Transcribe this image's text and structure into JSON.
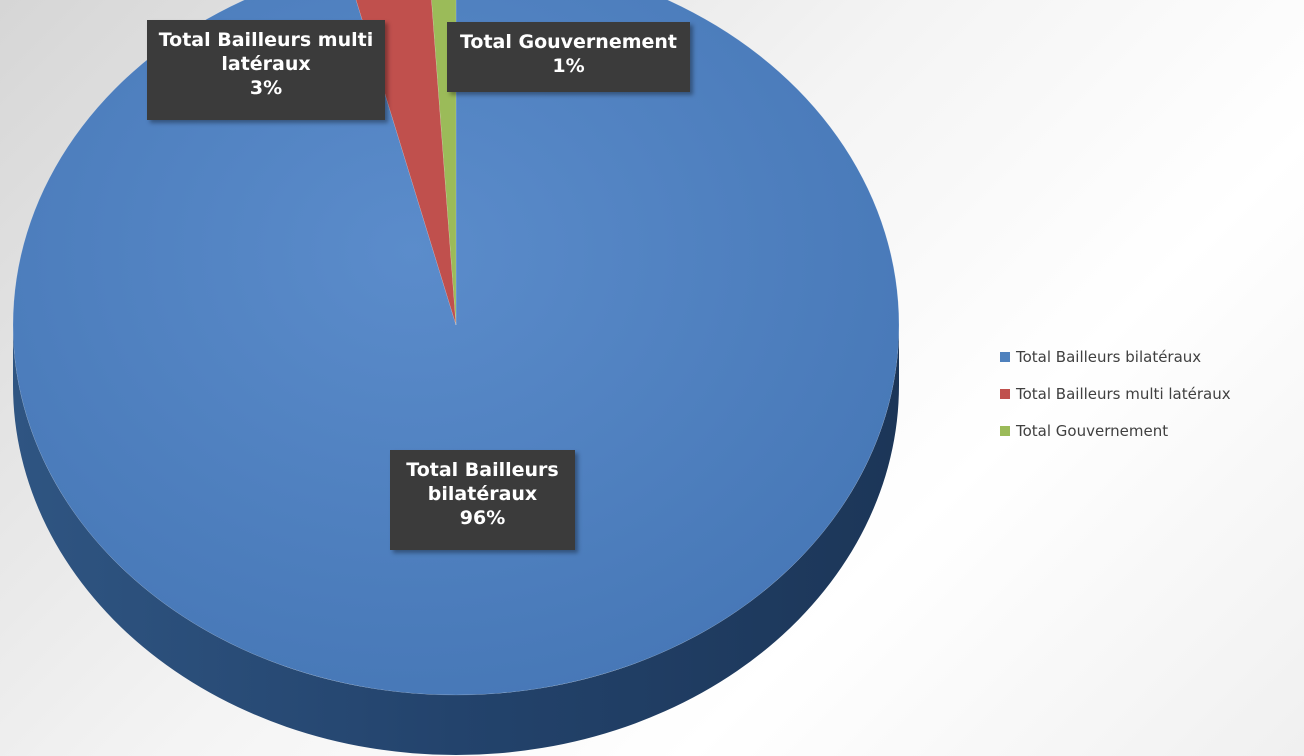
{
  "chart_data": {
    "type": "pie",
    "style": "3d",
    "categories": [
      "Total Bailleurs bilatéraux",
      "Total Bailleurs multi latéraux",
      "Total Gouvernement"
    ],
    "values": [
      96,
      3,
      1
    ],
    "unit": "%",
    "colors": [
      "#4f81bd",
      "#c0504d",
      "#9bbb59"
    ],
    "data_labels": [
      {
        "line1": "Total Bailleurs",
        "line2": "bilatéraux",
        "value": "96%"
      },
      {
        "line1": "Total Bailleurs multi",
        "line2": "latéraux",
        "value": "3%"
      },
      {
        "line1": "Total Gouvernement",
        "line2": "",
        "value": "1%"
      }
    ],
    "legend_position": "right",
    "legend": [
      "Total Bailleurs bilatéraux",
      "Total Bailleurs multi latéraux",
      "Total Gouvernement"
    ]
  }
}
